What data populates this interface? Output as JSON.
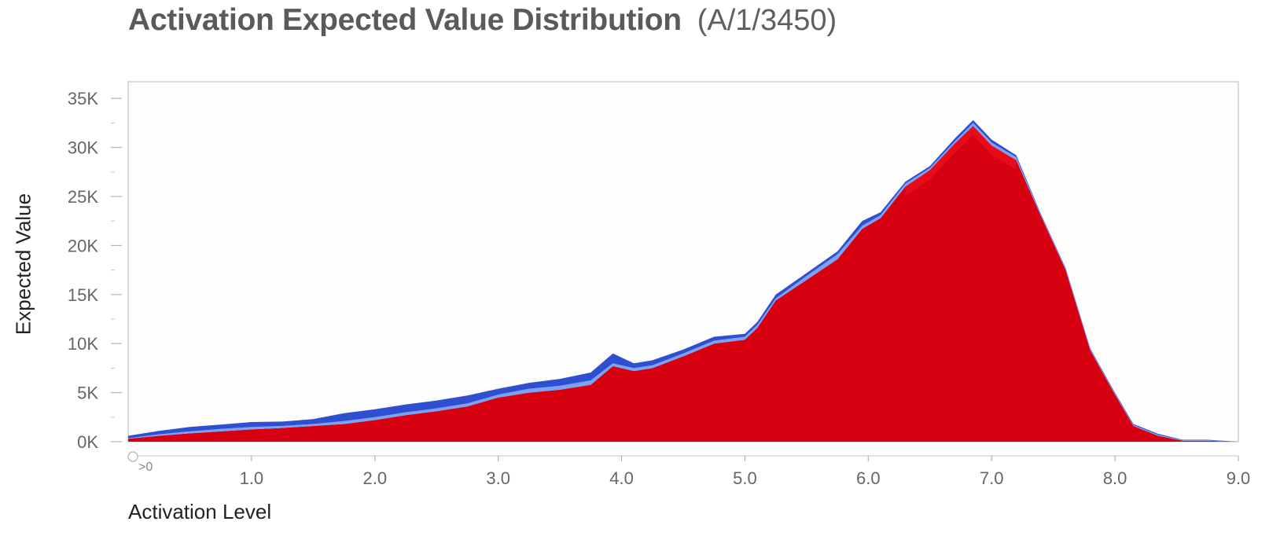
{
  "title": "Activation Expected Value Distribution",
  "subtitle": "(A/1/3450)",
  "colors": {
    "main_area": "#d60010",
    "dark_band": "#2e4fd0",
    "light_band": "#7aa2f5",
    "bright_red": "#ff1a2a",
    "frame": "#d0d0d0",
    "tick_text": "#666666"
  },
  "chart_data": {
    "type": "area",
    "stacked": true,
    "title": "Activation Expected Value Distribution",
    "subtitle": "(A/1/3450)",
    "xlabel": "Activation Level",
    "ylabel": "Expected Value",
    "xlim": [
      0,
      9.0
    ],
    "ylim": [
      0,
      36700
    ],
    "x_ticks": [
      1.0,
      2.0,
      3.0,
      4.0,
      5.0,
      6.0,
      7.0,
      8.0,
      9.0
    ],
    "x_tick_labels": [
      "1.0",
      "2.0",
      "3.0",
      "4.0",
      "5.0",
      "6.0",
      "7.0",
      "8.0",
      "9.0"
    ],
    "zero_marker_label": ">0",
    "y_ticks": [
      0,
      5000,
      10000,
      15000,
      20000,
      25000,
      30000,
      35000
    ],
    "y_tick_labels": [
      "0K",
      "5K",
      "10K",
      "15K",
      "20K",
      "25K",
      "30K",
      "35K"
    ],
    "grid": false,
    "x": [
      0.0,
      0.25,
      0.5,
      0.75,
      1.0,
      1.25,
      1.5,
      1.75,
      2.0,
      2.25,
      2.5,
      2.75,
      3.0,
      3.25,
      3.5,
      3.75,
      3.93,
      4.1,
      4.25,
      4.5,
      4.75,
      5.0,
      5.1,
      5.25,
      5.5,
      5.75,
      5.95,
      6.1,
      6.3,
      6.5,
      6.7,
      6.85,
      7.0,
      7.2,
      7.4,
      7.6,
      7.8,
      8.0,
      8.15,
      8.35,
      8.55,
      8.75,
      9.0
    ],
    "series": [
      {
        "values": [
          300,
          600,
          850,
          1050,
          1250,
          1400,
          1600,
          1800,
          2200,
          2700,
          3100,
          3600,
          4500,
          5000,
          5300,
          5800,
          7700,
          7200,
          7500,
          8700,
          10000,
          10400,
          11600,
          14400,
          16500,
          18600,
          21700,
          22800,
          26000,
          27700,
          30400,
          32200,
          30200,
          28700,
          23000,
          17500,
          9300,
          4800,
          1600,
          600,
          100,
          100,
          0
        ]
      },
      {
        "values": [
          50,
          150,
          200,
          250,
          250,
          200,
          200,
          300,
          300,
          300,
          300,
          300,
          300,
          400,
          400,
          450,
          300,
          300,
          300,
          300,
          300,
          300,
          300,
          200,
          400,
          500,
          300,
          300,
          300,
          200,
          200,
          300,
          300,
          300,
          100,
          100,
          100,
          100,
          100,
          100,
          50,
          50,
          0
        ]
      },
      {
        "values": [
          250,
          350,
          450,
          450,
          500,
          450,
          500,
          800,
          800,
          800,
          800,
          800,
          600,
          600,
          700,
          800,
          1000,
          500,
          500,
          400,
          400,
          300,
          300,
          400,
          300,
          300,
          500,
          300,
          200,
          200,
          300,
          300,
          300,
          200,
          100,
          100,
          100,
          100,
          100,
          100,
          50,
          50,
          0
        ]
      }
    ]
  }
}
